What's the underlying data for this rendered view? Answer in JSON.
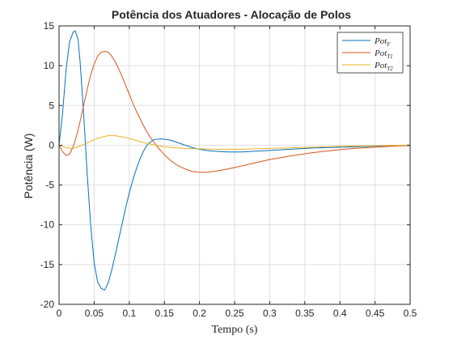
{
  "chart_data": {
    "type": "line",
    "title": "Potência dos Atuadores - Alocação de Polos",
    "xlabel": "Tempo (s)",
    "ylabel": "Potência (W)",
    "xlim": [
      0,
      0.5
    ],
    "ylim": [
      -20,
      15
    ],
    "xticks": [
      0,
      0.05,
      0.1,
      0.15,
      0.2,
      0.25,
      0.3,
      0.35,
      0.4,
      0.45,
      0.5
    ],
    "xtick_labels": [
      "0",
      "0.05",
      "0.1",
      "0.15",
      "0.2",
      "0.25",
      "0.3",
      "0.35",
      "0.4",
      "0.45",
      "0.5"
    ],
    "yticks": [
      -20,
      -15,
      -10,
      -5,
      0,
      5,
      10,
      15
    ],
    "ytick_labels": [
      "-20",
      "-15",
      "-10",
      "-5",
      "0",
      "5",
      "10",
      "15"
    ],
    "grid": true,
    "legend_position": "top-right",
    "series": [
      {
        "name": "Pot_F",
        "name_main": "Pot",
        "name_sub": "F",
        "color": "#0072BD",
        "x": [
          0,
          0.005,
          0.01,
          0.015,
          0.02,
          0.023,
          0.027,
          0.03,
          0.035,
          0.04,
          0.045,
          0.05,
          0.055,
          0.06,
          0.065,
          0.07,
          0.075,
          0.08,
          0.085,
          0.09,
          0.095,
          0.1,
          0.105,
          0.11,
          0.115,
          0.12,
          0.125,
          0.13,
          0.135,
          0.14,
          0.145,
          0.15,
          0.155,
          0.16,
          0.17,
          0.18,
          0.19,
          0.2,
          0.21,
          0.22,
          0.23,
          0.24,
          0.25,
          0.26,
          0.27,
          0.28,
          0.29,
          0.3,
          0.32,
          0.34,
          0.36,
          0.38,
          0.4,
          0.42,
          0.44,
          0.46,
          0.48,
          0.5
        ],
        "y": [
          0,
          4.0,
          9.5,
          13.0,
          14.2,
          14.4,
          13.3,
          10.5,
          4.0,
          -3.5,
          -10.0,
          -14.8,
          -17.2,
          -18.0,
          -18.2,
          -17.3,
          -15.7,
          -13.8,
          -11.8,
          -9.8,
          -7.8,
          -6.0,
          -4.4,
          -3.0,
          -1.8,
          -0.8,
          0.0,
          0.4,
          0.7,
          0.75,
          0.8,
          0.75,
          0.7,
          0.6,
          0.3,
          0.0,
          -0.3,
          -0.5,
          -0.65,
          -0.75,
          -0.8,
          -0.85,
          -0.85,
          -0.85,
          -0.8,
          -0.75,
          -0.7,
          -0.65,
          -0.55,
          -0.45,
          -0.35,
          -0.3,
          -0.25,
          -0.2,
          -0.15,
          -0.1,
          -0.05,
          0.0
        ]
      },
      {
        "name": "Pot_T1",
        "name_main": "Pot",
        "name_sub": "T1",
        "color": "#D95319",
        "x": [
          0,
          0.005,
          0.01,
          0.015,
          0.02,
          0.025,
          0.03,
          0.035,
          0.04,
          0.045,
          0.05,
          0.055,
          0.06,
          0.065,
          0.07,
          0.075,
          0.08,
          0.085,
          0.09,
          0.095,
          0.1,
          0.105,
          0.11,
          0.115,
          0.12,
          0.125,
          0.13,
          0.135,
          0.14,
          0.145,
          0.15,
          0.16,
          0.17,
          0.18,
          0.19,
          0.2,
          0.21,
          0.22,
          0.24,
          0.26,
          0.28,
          0.3,
          0.32,
          0.34,
          0.36,
          0.38,
          0.4,
          0.42,
          0.44,
          0.46,
          0.48,
          0.5
        ],
        "y": [
          0,
          -0.8,
          -1.3,
          -1.1,
          -0.2,
          1.2,
          3.0,
          5.0,
          7.0,
          8.8,
          10.2,
          11.2,
          11.7,
          11.8,
          11.7,
          11.2,
          10.5,
          9.6,
          8.6,
          7.5,
          6.4,
          5.3,
          4.3,
          3.4,
          2.5,
          1.7,
          1.0,
          0.4,
          -0.2,
          -0.7,
          -1.2,
          -2.0,
          -2.6,
          -3.0,
          -3.3,
          -3.4,
          -3.4,
          -3.3,
          -3.0,
          -2.6,
          -2.2,
          -1.8,
          -1.5,
          -1.2,
          -0.95,
          -0.75,
          -0.55,
          -0.4,
          -0.3,
          -0.2,
          -0.1,
          -0.05
        ]
      },
      {
        "name": "Pot_T2",
        "name_main": "Pot",
        "name_sub": "T2",
        "color": "#EDB120",
        "x": [
          0,
          0.01,
          0.02,
          0.03,
          0.04,
          0.05,
          0.06,
          0.07,
          0.08,
          0.09,
          0.1,
          0.11,
          0.12,
          0.13,
          0.14,
          0.15,
          0.16,
          0.18,
          0.2,
          0.22,
          0.24,
          0.26,
          0.28,
          0.3,
          0.32,
          0.34,
          0.36,
          0.38,
          0.4,
          0.42,
          0.44,
          0.46,
          0.48,
          0.5
        ],
        "y": [
          0,
          -0.3,
          -0.4,
          -0.1,
          0.3,
          0.7,
          1.0,
          1.2,
          1.2,
          1.05,
          0.85,
          0.6,
          0.35,
          0.15,
          -0.05,
          -0.2,
          -0.3,
          -0.4,
          -0.45,
          -0.5,
          -0.5,
          -0.5,
          -0.45,
          -0.4,
          -0.35,
          -0.3,
          -0.25,
          -0.2,
          -0.15,
          -0.1,
          -0.08,
          -0.05,
          -0.02,
          0
        ]
      }
    ]
  }
}
